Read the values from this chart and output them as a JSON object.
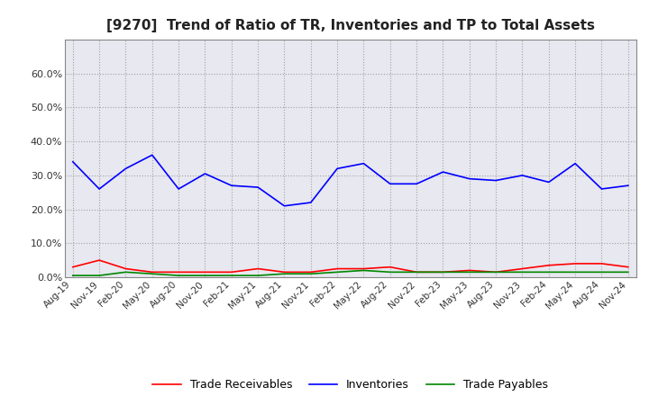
{
  "title": "[9270]  Trend of Ratio of TR, Inventories and TP to Total Assets",
  "background_color": "#ffffff",
  "plot_bg_color": "#e8e8f0",
  "grid_color": "#999999",
  "x_labels": [
    "Aug-19",
    "Nov-19",
    "Feb-20",
    "May-20",
    "Aug-20",
    "Nov-20",
    "Feb-21",
    "May-21",
    "Aug-21",
    "Nov-21",
    "Feb-22",
    "May-22",
    "Aug-22",
    "Nov-22",
    "Feb-23",
    "May-23",
    "Aug-23",
    "Nov-23",
    "Feb-24",
    "May-24",
    "Aug-24",
    "Nov-24"
  ],
  "trade_receivables": [
    3.0,
    5.0,
    2.5,
    1.5,
    1.5,
    1.5,
    1.5,
    2.5,
    1.5,
    1.5,
    2.5,
    2.5,
    3.0,
    1.5,
    1.5,
    2.0,
    1.5,
    2.5,
    3.5,
    4.0,
    4.0,
    3.0
  ],
  "inventories": [
    34.0,
    26.0,
    32.0,
    36.0,
    26.0,
    30.5,
    27.0,
    26.5,
    21.0,
    22.0,
    32.0,
    33.5,
    27.5,
    27.5,
    31.0,
    29.0,
    28.5,
    30.0,
    28.0,
    33.5,
    26.0,
    27.0
  ],
  "trade_payables": [
    0.5,
    0.5,
    1.5,
    1.0,
    0.5,
    0.5,
    0.5,
    0.5,
    1.0,
    1.0,
    1.5,
    2.0,
    1.5,
    1.5,
    1.5,
    1.5,
    1.5,
    1.5,
    1.5,
    1.5,
    1.5,
    1.5
  ],
  "tr_color": "#ff0000",
  "inv_color": "#0000ff",
  "tp_color": "#008800",
  "ylim": [
    0,
    70
  ],
  "yticks": [
    0,
    10,
    20,
    30,
    40,
    50,
    60
  ],
  "ytick_labels": [
    "0.0%",
    "10.0%",
    "20.0%",
    "30.0%",
    "40.0%",
    "50.0%",
    "60.0%"
  ],
  "legend_labels": [
    "Trade Receivables",
    "Inventories",
    "Trade Payables"
  ]
}
